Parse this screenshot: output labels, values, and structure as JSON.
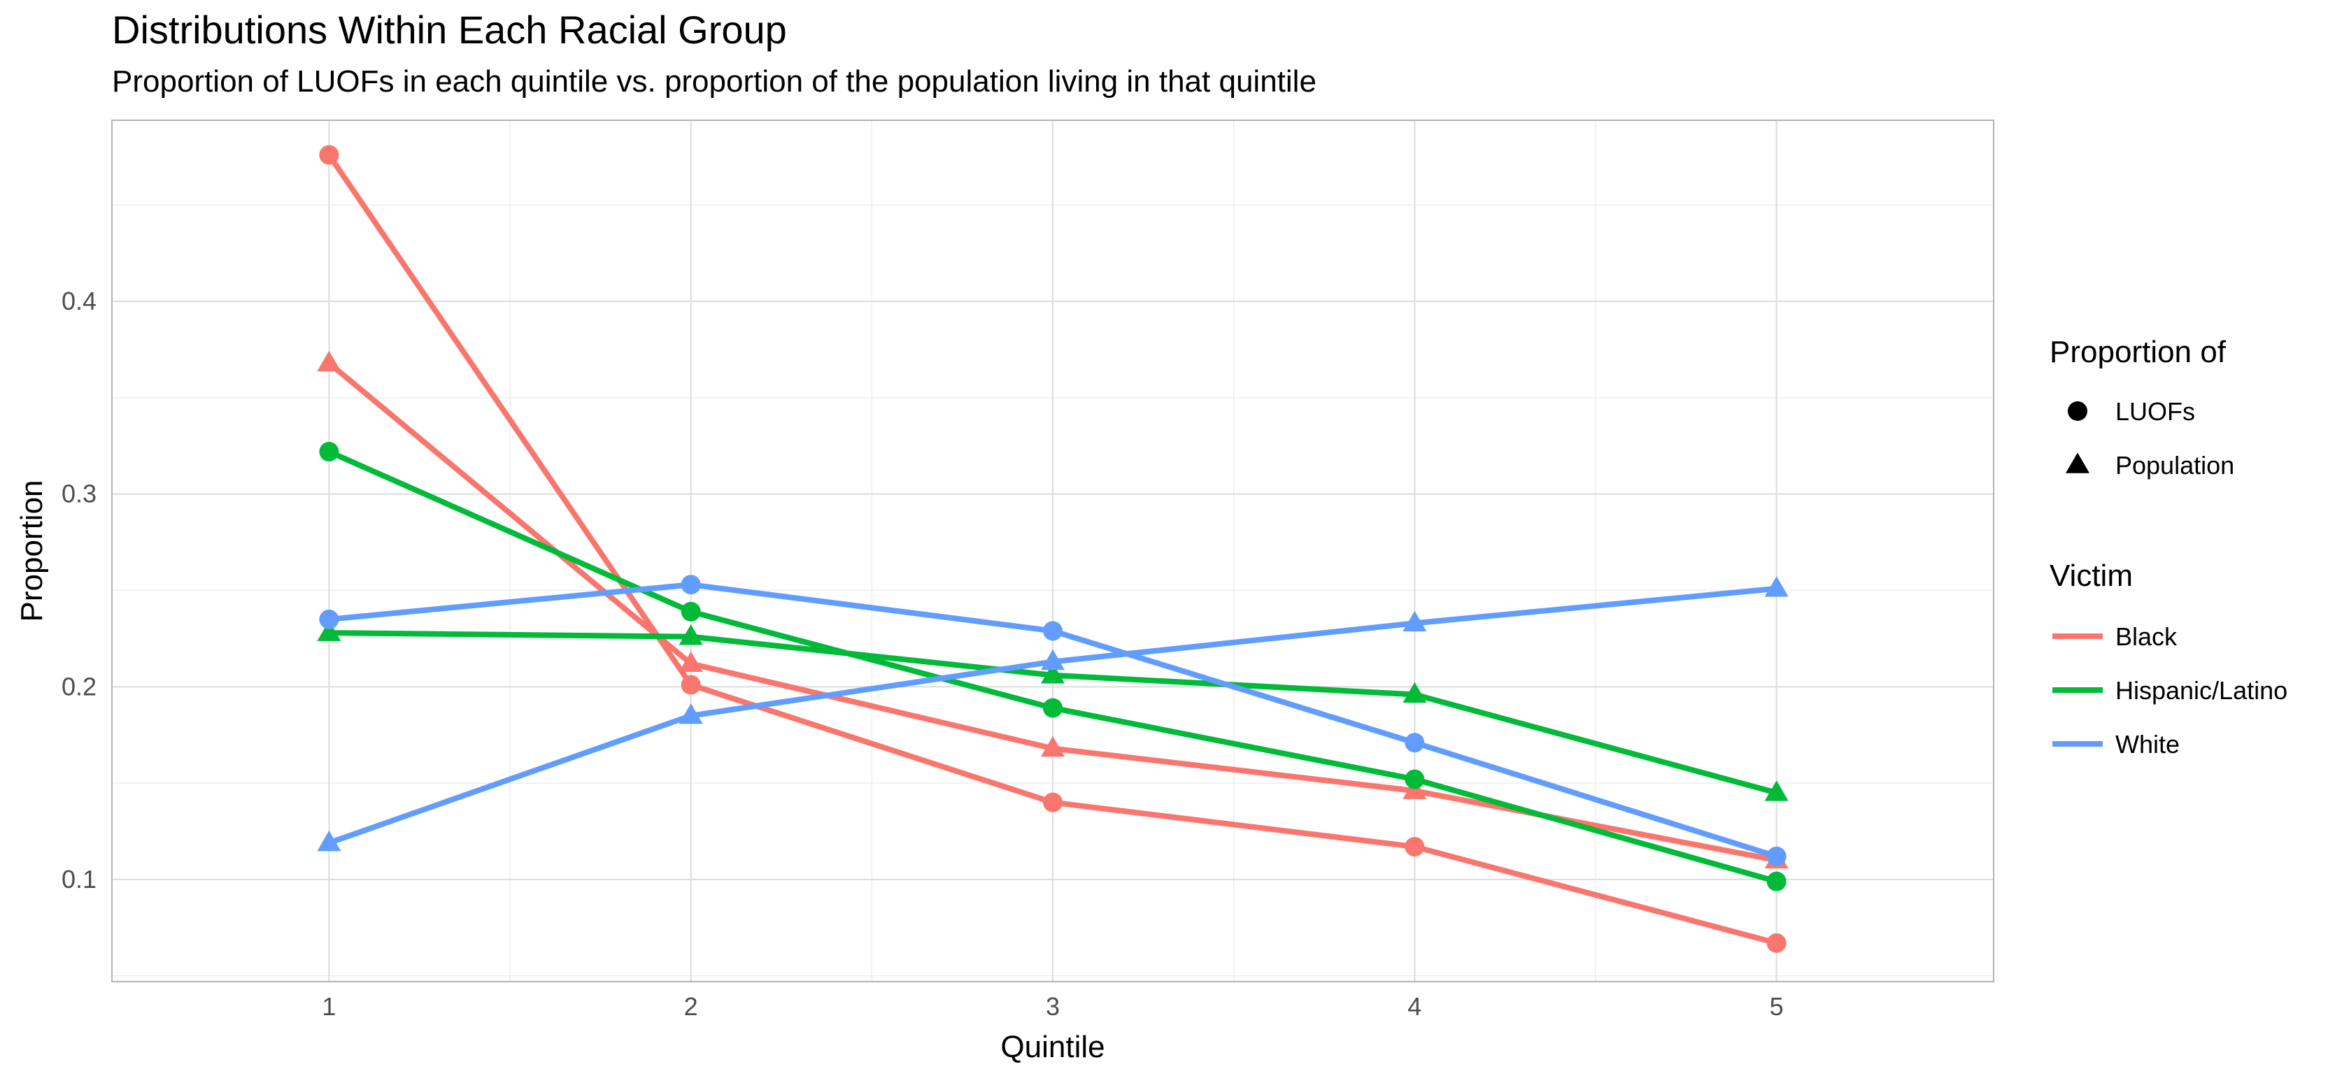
{
  "chart_data": {
    "type": "line",
    "title": "Distributions Within Each Racial Group",
    "subtitle": "Proportion of LUOFs in each quintile vs. proportion of the population living in that quintile",
    "xlabel": "Quintile",
    "ylabel": "Proportion",
    "x": [
      1,
      2,
      3,
      4,
      5
    ],
    "xlim": [
      0.4,
      5.6
    ],
    "ylim": [
      0.047,
      0.494
    ],
    "y_ticks": [
      0.1,
      0.2,
      0.3,
      0.4
    ],
    "y_tick_labels": [
      "0.1",
      "0.2",
      "0.3",
      "0.4"
    ],
    "x_tick_labels": [
      "1",
      "2",
      "3",
      "4",
      "5"
    ],
    "grid": true,
    "legend_position": "right",
    "legends": {
      "shape": {
        "title": "Proportion of",
        "items": [
          {
            "label": "LUOFs",
            "shape": "circle"
          },
          {
            "label": "Population",
            "shape": "triangle"
          }
        ]
      },
      "color": {
        "title": "Victim",
        "items": [
          {
            "label": "Black",
            "color": "#F8766D"
          },
          {
            "label": "Hispanic/Latino",
            "color": "#00BA38"
          },
          {
            "label": "White",
            "color": "#619CFF"
          }
        ]
      }
    },
    "series": [
      {
        "name": "Black",
        "measure": "LUOFs",
        "shape": "circle",
        "color": "#F8766D",
        "values": [
          0.476,
          0.201,
          0.14,
          0.117,
          0.067
        ]
      },
      {
        "name": "Black",
        "measure": "Population",
        "shape": "triangle",
        "color": "#F8766D",
        "values": [
          0.368,
          0.212,
          0.168,
          0.146,
          0.11
        ]
      },
      {
        "name": "Hispanic/Latino",
        "measure": "LUOFs",
        "shape": "circle",
        "color": "#00BA38",
        "values": [
          0.322,
          0.239,
          0.189,
          0.152,
          0.099
        ]
      },
      {
        "name": "Hispanic/Latino",
        "measure": "Population",
        "shape": "triangle",
        "color": "#00BA38",
        "values": [
          0.228,
          0.226,
          0.206,
          0.196,
          0.145
        ]
      },
      {
        "name": "White",
        "measure": "LUOFs",
        "shape": "circle",
        "color": "#619CFF",
        "values": [
          0.235,
          0.253,
          0.229,
          0.171,
          0.112
        ]
      },
      {
        "name": "White",
        "measure": "Population",
        "shape": "triangle",
        "color": "#619CFF",
        "values": [
          0.119,
          0.185,
          0.213,
          0.233,
          0.251
        ]
      }
    ]
  }
}
